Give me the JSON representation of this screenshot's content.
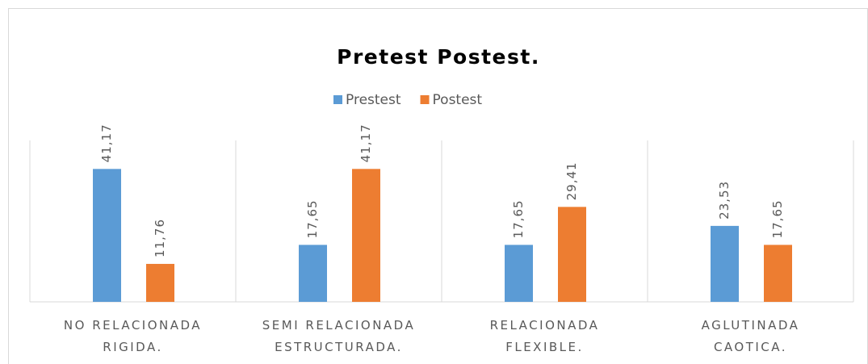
{
  "chart_data": {
    "type": "bar",
    "title": "Pretest Postest.",
    "categories": [
      "NO RELACIONADA\nRIGIDA.",
      "SEMI RELACIONADA\nESTRUCTURADA.",
      "RELACIONADA\nFLEXIBLE.",
      "AGLUTINADA\nCAOTICA."
    ],
    "series": [
      {
        "name": "Prestest",
        "color": "#5b9bd5",
        "values": [
          41.17,
          17.65,
          17.65,
          23.53
        ],
        "value_labels": [
          "41,17",
          "17,65",
          "17,65",
          "23,53"
        ]
      },
      {
        "name": "Postest",
        "color": "#ed7d31",
        "values": [
          11.76,
          41.17,
          29.41,
          17.65
        ],
        "value_labels": [
          "11,76",
          "41,17",
          "29,41",
          "17,65"
        ]
      }
    ],
    "ylim": [
      0,
      50
    ],
    "legend": "top"
  }
}
